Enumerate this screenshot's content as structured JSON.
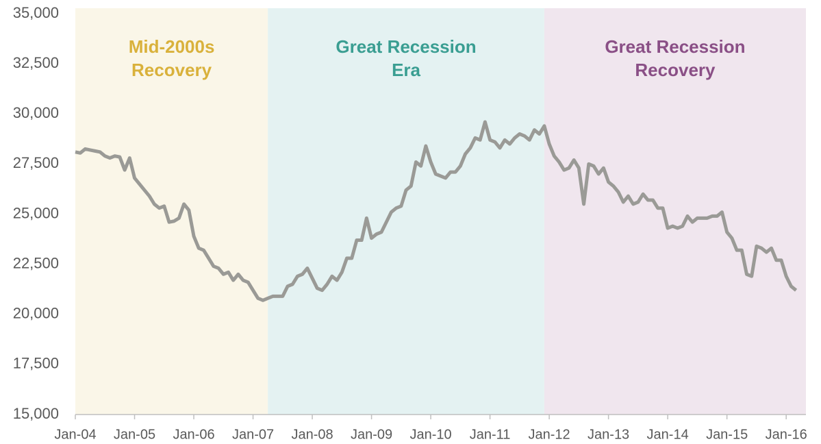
{
  "chart_data": {
    "type": "line",
    "regions": [
      {
        "label": [
          "Mid-2000s",
          "Recovery"
        ],
        "start": "2004-01",
        "end": "2007-04",
        "fill": "#faf6e8",
        "color": "#d9b13b"
      },
      {
        "label": [
          "Great Recession",
          "Era"
        ],
        "start": "2007-04",
        "end": "2011-12",
        "fill": "#e4f2f2",
        "color": "#3a9e92"
      },
      {
        "label": [
          "Great Recession",
          "Recovery"
        ],
        "start": "2011-12",
        "end": "2016-05",
        "fill": "#f0e6ee",
        "color": "#8a4f86"
      }
    ],
    "x": [
      "2004-01",
      "2004-02",
      "2004-03",
      "2004-04",
      "2004-05",
      "2004-06",
      "2004-07",
      "2004-08",
      "2004-09",
      "2004-10",
      "2004-11",
      "2004-12",
      "2005-01",
      "2005-02",
      "2005-03",
      "2005-04",
      "2005-05",
      "2005-06",
      "2005-07",
      "2005-08",
      "2005-09",
      "2005-10",
      "2005-11",
      "2005-12",
      "2006-01",
      "2006-02",
      "2006-03",
      "2006-04",
      "2006-05",
      "2006-06",
      "2006-07",
      "2006-08",
      "2006-09",
      "2006-10",
      "2006-11",
      "2006-12",
      "2007-01",
      "2007-02",
      "2007-03",
      "2007-04",
      "2007-05",
      "2007-06",
      "2007-07",
      "2007-08",
      "2007-09",
      "2007-10",
      "2007-11",
      "2007-12",
      "2008-01",
      "2008-02",
      "2008-03",
      "2008-04",
      "2008-05",
      "2008-06",
      "2008-07",
      "2008-08",
      "2008-09",
      "2008-10",
      "2008-11",
      "2008-12",
      "2009-01",
      "2009-02",
      "2009-03",
      "2009-04",
      "2009-05",
      "2009-06",
      "2009-07",
      "2009-08",
      "2009-09",
      "2009-10",
      "2009-11",
      "2009-12",
      "2010-01",
      "2010-02",
      "2010-03",
      "2010-04",
      "2010-05",
      "2010-06",
      "2010-07",
      "2010-08",
      "2010-09",
      "2010-10",
      "2010-11",
      "2010-12",
      "2011-01",
      "2011-02",
      "2011-03",
      "2011-04",
      "2011-05",
      "2011-06",
      "2011-07",
      "2011-08",
      "2011-09",
      "2011-10",
      "2011-11",
      "2011-12",
      "2012-01",
      "2012-02",
      "2012-03",
      "2012-04",
      "2012-05",
      "2012-06",
      "2012-07",
      "2012-08",
      "2012-09",
      "2012-10",
      "2012-11",
      "2012-12",
      "2013-01",
      "2013-02",
      "2013-03",
      "2013-04",
      "2013-05",
      "2013-06",
      "2013-07",
      "2013-08",
      "2013-09",
      "2013-10",
      "2013-11",
      "2013-12",
      "2014-01",
      "2014-02",
      "2014-03",
      "2014-04",
      "2014-05",
      "2014-06",
      "2014-07",
      "2014-08",
      "2014-09",
      "2014-10",
      "2014-11",
      "2014-12",
      "2015-01",
      "2015-02",
      "2015-03",
      "2015-04",
      "2015-05",
      "2015-06",
      "2015-07",
      "2015-08",
      "2015-09",
      "2015-10",
      "2015-11",
      "2015-12",
      "2016-01",
      "2016-02",
      "2016-03"
    ],
    "series": [
      {
        "color": "#9a9a96",
        "values": [
          28100,
          28050,
          28250,
          28200,
          28150,
          28100,
          27900,
          27800,
          27900,
          27850,
          27200,
          27800,
          26800,
          26500,
          26200,
          25900,
          25500,
          25300,
          25400,
          24600,
          24650,
          24800,
          25500,
          25200,
          23900,
          23300,
          23200,
          22800,
          22400,
          22300,
          22000,
          22100,
          21700,
          22000,
          21700,
          21600,
          21200,
          20800,
          20700,
          20800,
          20900,
          20900,
          20900,
          21400,
          21500,
          21900,
          22000,
          22300,
          21800,
          21300,
          21200,
          21500,
          21900,
          21700,
          22100,
          22800,
          22800,
          23700,
          23700,
          24800,
          23800,
          24000,
          24100,
          24600,
          25100,
          25300,
          25400,
          26200,
          26400,
          27600,
          27400,
          28400,
          27600,
          27000,
          26900,
          26800,
          27100,
          27100,
          27400,
          28000,
          28300,
          28800,
          28700,
          29600,
          28700,
          28600,
          28300,
          28700,
          28500,
          28800,
          29000,
          28900,
          28700,
          29200,
          29000,
          29400,
          28500,
          27900,
          27600,
          27200,
          27300,
          27700,
          27300,
          25500,
          27500,
          27400,
          27000,
          27300,
          26600,
          26400,
          26100,
          25600,
          25900,
          25500,
          25600,
          26000,
          25700,
          25700,
          25300,
          25300,
          24300,
          24400,
          24300,
          24400,
          24900,
          24600,
          24800,
          24800,
          24800,
          24900,
          24900,
          25100,
          24100,
          23800,
          23200,
          23200,
          22000,
          21900,
          23400,
          23300,
          23100,
          23300,
          22700,
          22700,
          21900,
          21400,
          21200
        ]
      }
    ],
    "xlim": [
      "2004-01",
      "2016-05"
    ],
    "xticks": [
      {
        "value": "2004-01",
        "label": "Jan-04"
      },
      {
        "value": "2005-01",
        "label": "Jan-05"
      },
      {
        "value": "2006-01",
        "label": "Jan-06"
      },
      {
        "value": "2007-01",
        "label": "Jan-07"
      },
      {
        "value": "2008-01",
        "label": "Jan-08"
      },
      {
        "value": "2009-01",
        "label": "Jan-09"
      },
      {
        "value": "2010-01",
        "label": "Jan-10"
      },
      {
        "value": "2011-01",
        "label": "Jan-11"
      },
      {
        "value": "2012-01",
        "label": "Jan-12"
      },
      {
        "value": "2013-01",
        "label": "Jan-13"
      },
      {
        "value": "2014-01",
        "label": "Jan-14"
      },
      {
        "value": "2015-01",
        "label": "Jan-15"
      },
      {
        "value": "2016-01",
        "label": "Jan-16"
      }
    ],
    "ylim": [
      15000,
      35000
    ],
    "yticks": [
      {
        "value": 15000,
        "label": "15,000"
      },
      {
        "value": 17500,
        "label": "17,500"
      },
      {
        "value": 20000,
        "label": "20,000"
      },
      {
        "value": 22500,
        "label": "22,500"
      },
      {
        "value": 25000,
        "label": "25,000"
      },
      {
        "value": 27500,
        "label": "27,500"
      },
      {
        "value": 30000,
        "label": "30,000"
      },
      {
        "value": 32500,
        "label": "32,500"
      },
      {
        "value": 35000,
        "label": "35,000"
      }
    ],
    "grid": false
  }
}
